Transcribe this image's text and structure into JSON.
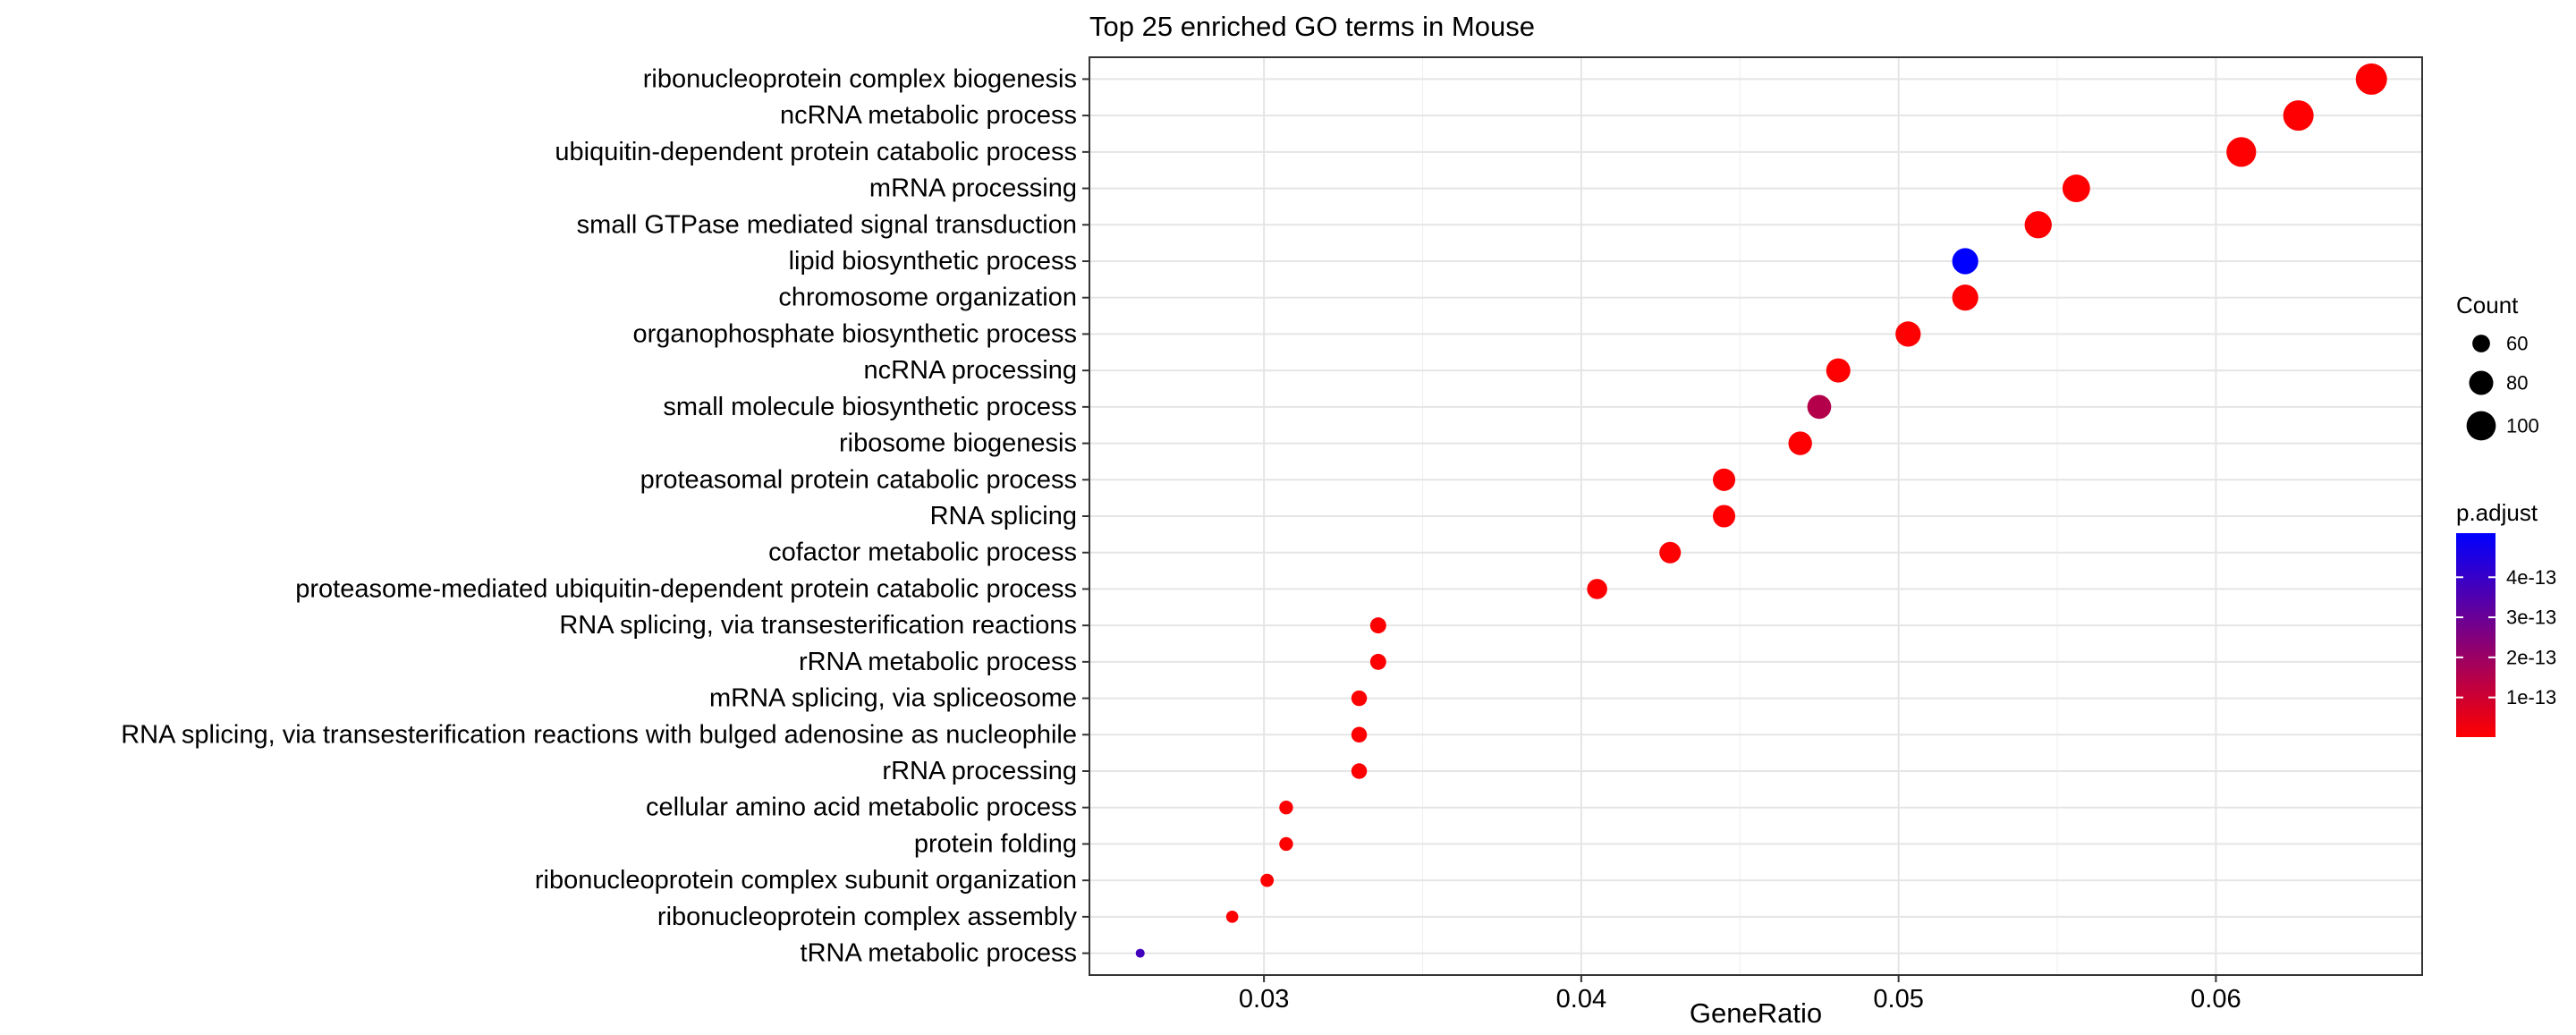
{
  "chart_data": {
    "type": "scatter",
    "title": "Top 25 enriched GO terms in Mouse",
    "xlabel": "GeneRatio",
    "ylabel": "",
    "xlim": [
      0.0245,
      0.0665
    ],
    "xticks": [
      0.03,
      0.04,
      0.05,
      0.06
    ],
    "xtick_labels": [
      "0.03",
      "0.04",
      "0.05",
      "0.06"
    ],
    "grid": true,
    "terms": [
      {
        "label": "ribonucleoprotein complex biogenesis",
        "gene_ratio": 0.0649,
        "count": 109,
        "p_adjust": 2e-15
      },
      {
        "label": "ncRNA metabolic process",
        "gene_ratio": 0.0626,
        "count": 105,
        "p_adjust": 2e-15
      },
      {
        "label": "ubiquitin-dependent protein catabolic process",
        "gene_ratio": 0.0608,
        "count": 102,
        "p_adjust": 2e-15
      },
      {
        "label": "mRNA processing",
        "gene_ratio": 0.0556,
        "count": 93,
        "p_adjust": 2e-15
      },
      {
        "label": "small GTPase mediated signal transduction",
        "gene_ratio": 0.0544,
        "count": 91,
        "p_adjust": 3e-15
      },
      {
        "label": "lipid biosynthetic process",
        "gene_ratio": 0.0521,
        "count": 87,
        "p_adjust": 5.1e-13
      },
      {
        "label": "chromosome organization",
        "gene_ratio": 0.0521,
        "count": 87,
        "p_adjust": 2e-15
      },
      {
        "label": "organophosphate biosynthetic process",
        "gene_ratio": 0.0503,
        "count": 84,
        "p_adjust": 2e-15
      },
      {
        "label": "ncRNA processing",
        "gene_ratio": 0.0481,
        "count": 80,
        "p_adjust": 2e-15
      },
      {
        "label": "small molecule biosynthetic process",
        "gene_ratio": 0.0475,
        "count": 79,
        "p_adjust": 1.5e-13
      },
      {
        "label": "ribosome biogenesis",
        "gene_ratio": 0.0469,
        "count": 78,
        "p_adjust": 2e-15
      },
      {
        "label": "proteasomal protein catabolic process",
        "gene_ratio": 0.0445,
        "count": 74,
        "p_adjust": 2e-15
      },
      {
        "label": "RNA splicing",
        "gene_ratio": 0.0445,
        "count": 74,
        "p_adjust": 2e-15
      },
      {
        "label": "cofactor metabolic process",
        "gene_ratio": 0.0428,
        "count": 71,
        "p_adjust": 2e-15
      },
      {
        "label": "proteasome-mediated ubiquitin-dependent protein catabolic process",
        "gene_ratio": 0.0405,
        "count": 67,
        "p_adjust": 2e-15
      },
      {
        "label": "RNA splicing, via transesterification reactions",
        "gene_ratio": 0.0336,
        "count": 56,
        "p_adjust": 2e-15
      },
      {
        "label": "rRNA metabolic process",
        "gene_ratio": 0.0336,
        "count": 56,
        "p_adjust": 2e-15
      },
      {
        "label": "mRNA splicing, via spliceosome",
        "gene_ratio": 0.033,
        "count": 55,
        "p_adjust": 2e-15
      },
      {
        "label": "RNA splicing, via transesterification reactions with bulged adenosine as nucleophile",
        "gene_ratio": 0.033,
        "count": 55,
        "p_adjust": 2e-15
      },
      {
        "label": "rRNA processing",
        "gene_ratio": 0.033,
        "count": 55,
        "p_adjust": 2e-15
      },
      {
        "label": "cellular amino acid metabolic process",
        "gene_ratio": 0.0307,
        "count": 51,
        "p_adjust": 2e-15
      },
      {
        "label": "protein folding",
        "gene_ratio": 0.0307,
        "count": 51,
        "p_adjust": 2e-15
      },
      {
        "label": "ribonucleoprotein complex subunit organization",
        "gene_ratio": 0.0301,
        "count": 50,
        "p_adjust": 2e-15
      },
      {
        "label": "ribonucleoprotein complex assembly",
        "gene_ratio": 0.029,
        "count": 48,
        "p_adjust": 2e-15
      },
      {
        "label": "tRNA metabolic process",
        "gene_ratio": 0.0261,
        "count": 43,
        "p_adjust": 3.8e-13
      }
    ],
    "legend": {
      "placement": "right",
      "size_title": "Count",
      "size_breaks": [
        60,
        80,
        100
      ],
      "size_labels": [
        "60",
        "80",
        "100"
      ],
      "size_range_counts": [
        43,
        109
      ],
      "color_title": "p.adjust",
      "color_breaks": [
        1e-13,
        2e-13,
        3e-13,
        4e-13
      ],
      "color_labels": [
        "1e-13",
        "2e-13",
        "3e-13",
        "4e-13"
      ],
      "color_range": [
        1e-15,
        5.1e-13
      ],
      "color_low": "#ff0000",
      "color_high": "#0000ff"
    }
  }
}
